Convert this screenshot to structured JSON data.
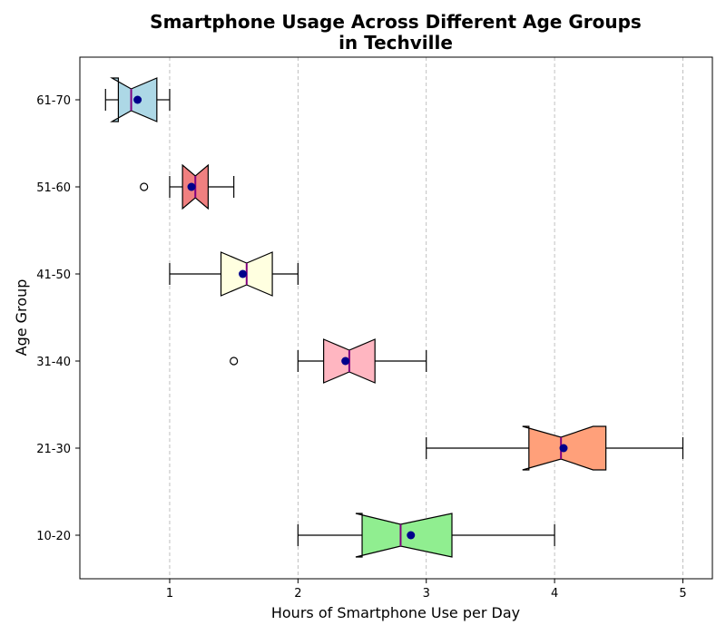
{
  "chart_data": {
    "type": "boxplot",
    "orientation": "horizontal",
    "notched": true,
    "title_lines": [
      "Smartphone Usage Across Different Age Groups",
      "in Techville"
    ],
    "xlabel": "Hours of Smartphone Use per Day",
    "ylabel": "Age Group",
    "xlim": [
      0.3,
      5.23
    ],
    "xticks": [
      1,
      2,
      3,
      4,
      5
    ],
    "grid": "x-dashed",
    "mean_color": "#00008b",
    "median_color": "#800080",
    "groups": [
      {
        "label": "10-20",
        "color": "#90ee90",
        "whisker_low": 2.0,
        "q1": 2.5,
        "median": 2.8,
        "q3": 3.2,
        "whisker_high": 4.0,
        "notch_low": 2.45,
        "notch_high": 3.2,
        "mean": 2.88,
        "outliers": []
      },
      {
        "label": "21-30",
        "color": "#ffa07a",
        "whisker_low": 3.0,
        "q1": 3.8,
        "median": 4.05,
        "q3": 4.4,
        "whisker_high": 5.0,
        "notch_low": 3.75,
        "notch_high": 4.3,
        "mean": 4.07,
        "outliers": []
      },
      {
        "label": "31-40",
        "color": "#ffb6c1",
        "whisker_low": 2.0,
        "q1": 2.2,
        "median": 2.4,
        "q3": 2.6,
        "whisker_high": 3.0,
        "notch_low": 2.2,
        "notch_high": 2.6,
        "mean": 2.37,
        "outliers": [
          1.5
        ]
      },
      {
        "label": "41-50",
        "color": "#ffffe0",
        "whisker_low": 1.0,
        "q1": 1.4,
        "median": 1.6,
        "q3": 1.8,
        "whisker_high": 2.0,
        "notch_low": 1.4,
        "notch_high": 1.8,
        "mean": 1.57,
        "outliers": []
      },
      {
        "label": "51-60",
        "color": "#f08080",
        "whisker_low": 1.0,
        "q1": 1.1,
        "median": 1.2,
        "q3": 1.3,
        "whisker_high": 1.5,
        "notch_low": 1.1,
        "notch_high": 1.3,
        "mean": 1.17,
        "outliers": [
          0.8
        ]
      },
      {
        "label": "61-70",
        "color": "#add8e6",
        "whisker_low": 0.5,
        "q1": 0.6,
        "median": 0.7,
        "q3": 0.9,
        "whisker_high": 1.0,
        "notch_low": 0.55,
        "notch_high": 0.9,
        "mean": 0.75,
        "outliers": []
      }
    ]
  }
}
